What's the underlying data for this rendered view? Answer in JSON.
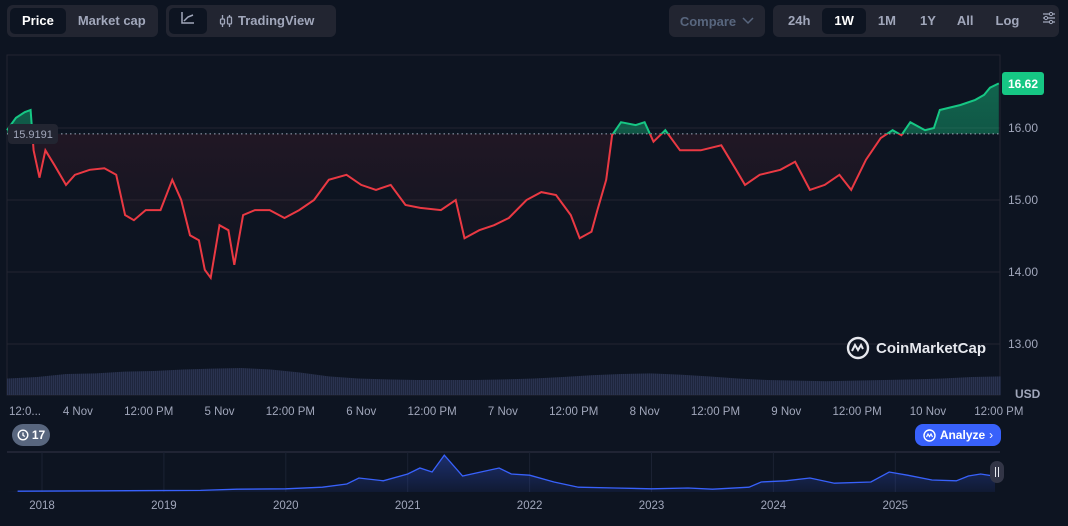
{
  "toolbar": {
    "price_label": "Price",
    "market_cap_label": "Market cap",
    "line_chart_icon": "line-chart-icon",
    "tradingview_label": "TradingView",
    "compare_label": "Compare",
    "ranges": [
      "24h",
      "1W",
      "1M",
      "1Y",
      "All"
    ],
    "active_range": "1W",
    "log_label": "Log",
    "settings_icon": "sliders-icon"
  },
  "badges": {
    "baseline_label": "15.9191",
    "current_price_label": "16.62",
    "currency": "USD",
    "history_count": "17",
    "analyze_label": "Analyze",
    "logo_text": "CoinMarketCap"
  },
  "colors": {
    "up": "#16c784",
    "down": "#ea3943",
    "accent": "#3861fb",
    "background": "#0d1421"
  },
  "chart_data": [
    {
      "type": "line",
      "baseline": 15.9191,
      "current": 16.62,
      "ylim": [
        12.85,
        17.0
      ],
      "y_ticks": [
        "16.00",
        "15.00",
        "14.00",
        "13.00"
      ],
      "y_tick_values": [
        16,
        15,
        14,
        13
      ],
      "x_ticks": [
        "12:0...",
        "4 Nov",
        "12:00 PM",
        "5 Nov",
        "12:00 PM",
        "6 Nov",
        "12:00 PM",
        "7 Nov",
        "12:00 PM",
        "8 Nov",
        "12:00 PM",
        "9 Nov",
        "12:00 PM",
        "10 Nov",
        "12:00 PM"
      ],
      "x_tick_times": [
        "11-04 00:00",
        "11-04 00:00",
        "11-04 12:00",
        "11-05 00:00",
        "11-05 12:00",
        "11-06 00:00",
        "11-06 12:00",
        "11-07 00:00",
        "11-07 12:00",
        "11-08 00:00",
        "11-08 12:00",
        "11-09 00:00",
        "11-09 12:00",
        "11-10 00:00",
        "11-10 12:00"
      ],
      "grid": true,
      "points": [
        [
          "11-03 12:00",
          15.97
        ],
        [
          "11-03 13:30",
          16.14
        ],
        [
          "11-03 15:00",
          16.22
        ],
        [
          "11-03 16:00",
          16.25
        ],
        [
          "11-03 16:30",
          15.69
        ],
        [
          "11-03 17:30",
          15.31
        ],
        [
          "11-03 18:30",
          15.69
        ],
        [
          "11-03 20:00",
          15.49
        ],
        [
          "11-03 22:00",
          15.21
        ],
        [
          "11-03 23:30",
          15.35
        ],
        [
          "11-04 02:00",
          15.42
        ],
        [
          "11-04 04:30",
          15.44
        ],
        [
          "11-04 06:30",
          15.35
        ],
        [
          "11-04 08:00",
          14.79
        ],
        [
          "11-04 09:30",
          14.72
        ],
        [
          "11-04 11:30",
          14.86
        ],
        [
          "11-04 14:00",
          14.86
        ],
        [
          "11-04 16:00",
          15.28
        ],
        [
          "11-04 17:30",
          15.0
        ],
        [
          "11-04 19:00",
          14.51
        ],
        [
          "11-04 20:30",
          14.44
        ],
        [
          "11-04 21:30",
          14.03
        ],
        [
          "11-04 22:30",
          13.92
        ],
        [
          "11-05 00:00",
          14.65
        ],
        [
          "11-05 01:30",
          14.58
        ],
        [
          "11-05 02:30",
          14.1
        ],
        [
          "11-05 04:00",
          14.79
        ],
        [
          "11-05 06:00",
          14.86
        ],
        [
          "11-05 08:30",
          14.86
        ],
        [
          "11-05 11:00",
          14.75
        ],
        [
          "11-05 13:30",
          14.86
        ],
        [
          "11-05 16:00",
          15.0
        ],
        [
          "11-05 18:30",
          15.28
        ],
        [
          "11-05 21:30",
          15.35
        ],
        [
          "11-06 00:00",
          15.21
        ],
        [
          "11-06 02:30",
          15.14
        ],
        [
          "11-06 05:00",
          15.21
        ],
        [
          "11-06 07:30",
          14.93
        ],
        [
          "11-06 10:00",
          14.89
        ],
        [
          "11-06 13:30",
          14.86
        ],
        [
          "11-06 16:00",
          15.0
        ],
        [
          "11-06 17:30",
          14.47
        ],
        [
          "11-06 20:00",
          14.58
        ],
        [
          "11-06 22:30",
          14.65
        ],
        [
          "11-07 01:00",
          14.75
        ],
        [
          "11-07 04:00",
          15.0
        ],
        [
          "11-07 06:30",
          15.11
        ],
        [
          "11-07 09:00",
          15.07
        ],
        [
          "11-07 11:30",
          14.79
        ],
        [
          "11-07 13:00",
          14.47
        ],
        [
          "11-07 15:00",
          14.56
        ],
        [
          "11-07 16:00",
          14.86
        ],
        [
          "11-07 17:30",
          15.28
        ],
        [
          "11-07 18:30",
          15.9
        ],
        [
          "11-07 20:00",
          16.08
        ],
        [
          "11-07 22:30",
          16.04
        ],
        [
          "11-08 00:00",
          16.08
        ],
        [
          "11-08 01:30",
          15.81
        ],
        [
          "11-08 03:30",
          15.97
        ],
        [
          "11-08 06:00",
          15.69
        ],
        [
          "11-08 09:30",
          15.69
        ],
        [
          "11-08 13:00",
          15.76
        ],
        [
          "11-08 15:30",
          15.42
        ],
        [
          "11-08 17:00",
          15.21
        ],
        [
          "11-08 19:30",
          15.35
        ],
        [
          "11-08 23:00",
          15.42
        ],
        [
          "11-09 01:30",
          15.53
        ],
        [
          "11-09 04:00",
          15.14
        ],
        [
          "11-09 06:30",
          15.21
        ],
        [
          "11-09 09:00",
          15.35
        ],
        [
          "11-09 11:00",
          15.14
        ],
        [
          "11-09 13:30",
          15.56
        ],
        [
          "11-09 16:00",
          15.86
        ],
        [
          "11-09 18:00",
          15.97
        ],
        [
          "11-09 19:30",
          15.9
        ],
        [
          "11-09 21:00",
          16.08
        ],
        [
          "11-09 23:30",
          15.97
        ],
        [
          "11-10 01:00",
          16.0
        ],
        [
          "11-10 02:00",
          16.25
        ],
        [
          "11-10 05:30",
          16.32
        ],
        [
          "11-10 08:00",
          16.39
        ],
        [
          "11-10 09:30",
          16.46
        ],
        [
          "11-10 10:30",
          16.56
        ],
        [
          "11-10 12:00",
          16.62
        ]
      ],
      "volume_relative": [
        0.55,
        0.6,
        0.7,
        0.72,
        0.78,
        0.8,
        0.85,
        0.88,
        0.9,
        0.85,
        0.75,
        0.62,
        0.55,
        0.52,
        0.5,
        0.5,
        0.5,
        0.52,
        0.55,
        0.6,
        0.66,
        0.7,
        0.72,
        0.68,
        0.62,
        0.55,
        0.5,
        0.48,
        0.46,
        0.48,
        0.5,
        0.52,
        0.55,
        0.6,
        0.62
      ]
    },
    {
      "type": "area",
      "x_ticks": [
        "2018",
        "2019",
        "2020",
        "2021",
        "2022",
        "2023",
        "2024",
        "2025"
      ],
      "points_relative": [
        [
          2017.8,
          0.02
        ],
        [
          2018.5,
          0.03
        ],
        [
          2019.3,
          0.04
        ],
        [
          2019.6,
          0.07
        ],
        [
          2020.0,
          0.08
        ],
        [
          2020.3,
          0.12
        ],
        [
          2020.5,
          0.2
        ],
        [
          2020.6,
          0.35
        ],
        [
          2020.8,
          0.28
        ],
        [
          2021.0,
          0.45
        ],
        [
          2021.1,
          0.6
        ],
        [
          2021.2,
          0.5
        ],
        [
          2021.3,
          0.92
        ],
        [
          2021.45,
          0.4
        ],
        [
          2021.6,
          0.5
        ],
        [
          2021.75,
          0.6
        ],
        [
          2021.85,
          0.45
        ],
        [
          2022.0,
          0.42
        ],
        [
          2022.2,
          0.25
        ],
        [
          2022.4,
          0.12
        ],
        [
          2022.7,
          0.1
        ],
        [
          2023.0,
          0.08
        ],
        [
          2023.3,
          0.1
        ],
        [
          2023.5,
          0.07
        ],
        [
          2023.8,
          0.12
        ],
        [
          2023.9,
          0.25
        ],
        [
          2024.1,
          0.28
        ],
        [
          2024.3,
          0.35
        ],
        [
          2024.5,
          0.22
        ],
        [
          2024.8,
          0.25
        ],
        [
          2024.95,
          0.5
        ],
        [
          2025.1,
          0.42
        ],
        [
          2025.3,
          0.3
        ],
        [
          2025.5,
          0.28
        ],
        [
          2025.6,
          0.4
        ],
        [
          2025.7,
          0.45
        ],
        [
          2025.85,
          0.38
        ]
      ]
    }
  ]
}
